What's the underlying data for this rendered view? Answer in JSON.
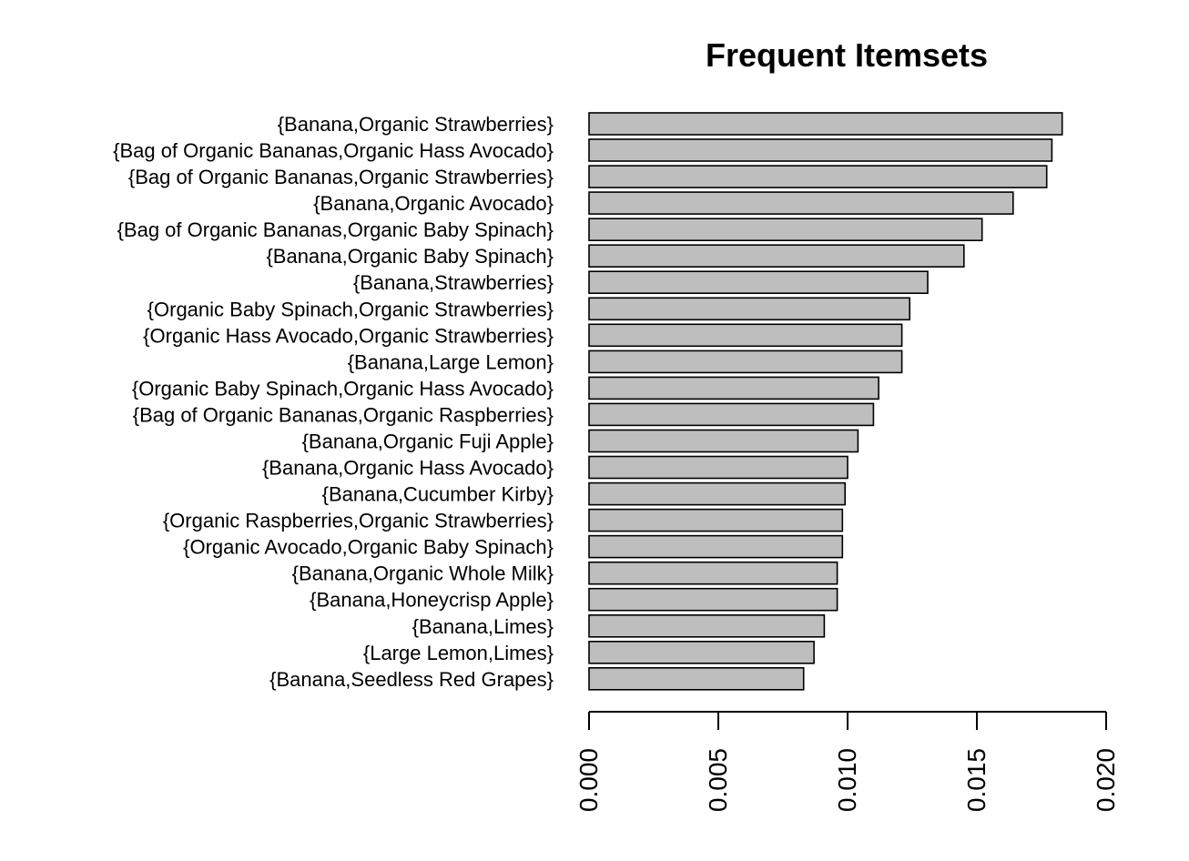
{
  "chart_data": {
    "type": "bar",
    "orientation": "horizontal",
    "title": "Frequent Itemsets",
    "xlabel": "",
    "ylabel": "",
    "xlim": [
      0,
      0.02
    ],
    "ticks": [
      "0.000",
      "0.005",
      "0.010",
      "0.015",
      "0.020"
    ],
    "tick_values": [
      0,
      0.005,
      0.01,
      0.015,
      0.02
    ],
    "grid": false,
    "bar_color": "#bebebe",
    "categories": [
      "{Banana,Organic Strawberries}",
      "{Bag of Organic Bananas,Organic Hass Avocado}",
      "{Bag of Organic Bananas,Organic Strawberries}",
      "{Banana,Organic Avocado}",
      "{Bag of Organic Bananas,Organic Baby Spinach}",
      "{Banana,Organic Baby Spinach}",
      "{Banana,Strawberries}",
      "{Organic Baby Spinach,Organic Strawberries}",
      "{Organic Hass Avocado,Organic Strawberries}",
      "{Banana,Large Lemon}",
      "{Organic Baby Spinach,Organic Hass Avocado}",
      "{Bag of Organic Bananas,Organic Raspberries}",
      "{Banana,Organic Fuji Apple}",
      "{Banana,Organic Hass Avocado}",
      "{Banana,Cucumber Kirby}",
      "{Organic Raspberries,Organic Strawberries}",
      "{Organic Avocado,Organic Baby Spinach}",
      "{Banana,Organic Whole Milk}",
      "{Banana,Honeycrisp Apple}",
      "{Banana,Limes}",
      "{Large Lemon,Limes}",
      "{Banana,Seedless Red Grapes}"
    ],
    "values": [
      0.0183,
      0.0179,
      0.0177,
      0.0164,
      0.0152,
      0.0145,
      0.0131,
      0.0124,
      0.0121,
      0.0121,
      0.0112,
      0.011,
      0.0104,
      0.01,
      0.0099,
      0.0098,
      0.0098,
      0.0096,
      0.0096,
      0.0091,
      0.0087,
      0.0083
    ]
  }
}
